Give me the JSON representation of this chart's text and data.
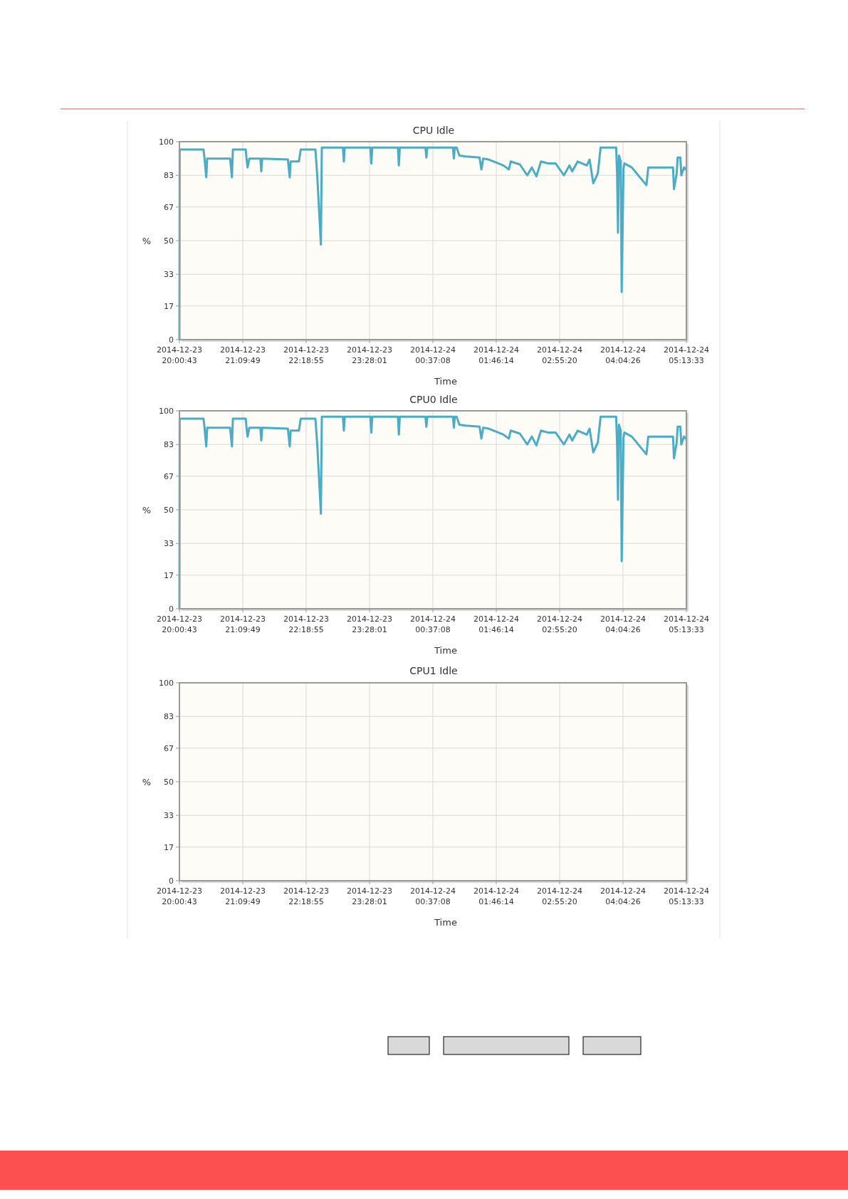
{
  "chart_data": [
    {
      "type": "line",
      "title": "CPU Idle",
      "xlabel": "Time",
      "ylabel": "%",
      "grid": true,
      "xlim": [
        "2014-12-23T20:00:43",
        "2014-12-24T05:13:33"
      ],
      "ylim": [
        0,
        100
      ],
      "yticks": [
        0,
        17,
        33,
        50,
        67,
        83,
        100
      ],
      "xticks": [
        {
          "value": "2014-12-23T20:00:43",
          "label": "2014-12-23 20:00:43"
        },
        {
          "value": "2014-12-23T21:09:49",
          "label": "2014-12-23 21:09:49"
        },
        {
          "value": "2014-12-23T22:18:55",
          "label": "2014-12-23 22:18:55"
        },
        {
          "value": "2014-12-23T23:28:01",
          "label": "2014-12-23 23:28:01"
        },
        {
          "value": "2014-12-24T00:37:08",
          "label": "2014-12-24 00:37:08"
        },
        {
          "value": "2014-12-24T01:46:14",
          "label": "2014-12-24 01:46:14"
        },
        {
          "value": "2014-12-24T02:55:20",
          "label": "2014-12-24 02:55:20"
        },
        {
          "value": "2014-12-24T04:04:26",
          "label": "2014-12-24 04:04:26"
        },
        {
          "value": "2014-12-24T05:13:33",
          "label": "2014-12-24 05:13:33"
        }
      ],
      "x": [
        "2014-12-23T20:00:43",
        "2014-12-23T20:01",
        "2014-12-23T20:27",
        "2014-12-23T20:28",
        "2014-12-23T20:30",
        "2014-12-23T20:31",
        "2014-12-23T20:56",
        "2014-12-23T20:58",
        "2014-12-23T20:59",
        "2014-12-23T21:13",
        "2014-12-23T21:14",
        "2014-12-23T21:15",
        "2014-12-23T21:17",
        "2014-12-23T21:29",
        "2014-12-23T21:30",
        "2014-12-23T21:31",
        "2014-12-23T21:59",
        "2014-12-23T22:01",
        "2014-12-23T22:02",
        "2014-12-23T22:11",
        "2014-12-23T22:13",
        "2014-12-23T22:29",
        "2014-12-23T22:31",
        "2014-12-23T22:35",
        "2014-12-23T22:36",
        "2014-12-23T22:59",
        "2014-12-23T23:00",
        "2014-12-23T23:01",
        "2014-12-23T23:29",
        "2014-12-23T23:30",
        "2014-12-23T23:31",
        "2014-12-23T23:59",
        "2014-12-24T00:00",
        "2014-12-24T00:01",
        "2014-12-24T00:29",
        "2014-12-24T00:30",
        "2014-12-24T00:31",
        "2014-12-24T00:59",
        "2014-12-24T01:00",
        "2014-12-24T01:01",
        "2014-12-24T01:03",
        "2014-12-24T01:06",
        "2014-12-24T01:13",
        "2014-12-24T01:28",
        "2014-12-24T01:30",
        "2014-12-24T01:32",
        "2014-12-24T01:38",
        "2014-12-24T01:46",
        "2014-12-24T01:54",
        "2014-12-24T02:00",
        "2014-12-24T02:02",
        "2014-12-24T02:12",
        "2014-12-24T02:20",
        "2014-12-24T02:25",
        "2014-12-24T02:30",
        "2014-12-24T02:35",
        "2014-12-24T02:43",
        "2014-12-24T02:51",
        "2014-12-24T03:00",
        "2014-12-24T03:06",
        "2014-12-24T03:09",
        "2014-12-24T03:15",
        "2014-12-24T03:25",
        "2014-12-24T03:28",
        "2014-12-24T03:32",
        "2014-12-24T03:37",
        "2014-12-24T03:40",
        "2014-12-24T03:57",
        "2014-12-24T03:58",
        "2014-12-24T03:59",
        "2014-12-24T04:00",
        "2014-12-24T04:02",
        "2014-12-24T04:03",
        "2014-12-24T04:05",
        "2014-12-24T04:06",
        "2014-12-24T04:14",
        "2014-12-24T04:30",
        "2014-12-24T04:32",
        "2014-12-24T04:59",
        "2014-12-24T05:00",
        "2014-12-24T05:03",
        "2014-12-24T05:04",
        "2014-12-24T05:07",
        "2014-12-24T05:08",
        "2014-12-24T05:11",
        "2014-12-24T05:13"
      ],
      "series": [
        {
          "color": "#4aacc5",
          "values": [
            0,
            96,
            96,
            92,
            82,
            91.5,
            91.5,
            82,
            96,
            96,
            91,
            87,
            91.5,
            91.5,
            85,
            91.5,
            91,
            82,
            90,
            90,
            96,
            96,
            83,
            48,
            97,
            97,
            90,
            97,
            97,
            89,
            97,
            97,
            88,
            97,
            97,
            92,
            97,
            97,
            91.5,
            97,
            97,
            93,
            92.5,
            92,
            86,
            91.5,
            91,
            89.5,
            88,
            86,
            90,
            88.5,
            83,
            87,
            82.5,
            90,
            89,
            89,
            83,
            88,
            85,
            90,
            88,
            91,
            79,
            84,
            97,
            97,
            83,
            54,
            93,
            90,
            24,
            86.5,
            89,
            87,
            78,
            87,
            87,
            76,
            84,
            92,
            92,
            83,
            87,
            86
          ]
        }
      ]
    },
    {
      "type": "line",
      "title": "CPU0 Idle",
      "xlabel": "Time",
      "ylabel": "%",
      "grid": true,
      "xlim": [
        "2014-12-23T20:00:43",
        "2014-12-24T05:13:33"
      ],
      "ylim": [
        0,
        100
      ],
      "yticks": [
        0,
        17,
        33,
        50,
        67,
        83,
        100
      ],
      "xticks": [
        {
          "value": "2014-12-23T20:00:43",
          "label": "2014-12-23 20:00:43"
        },
        {
          "value": "2014-12-23T21:09:49",
          "label": "2014-12-23 21:09:49"
        },
        {
          "value": "2014-12-23T22:18:55",
          "label": "2014-12-23 22:18:55"
        },
        {
          "value": "2014-12-23T23:28:01",
          "label": "2014-12-23 23:28:01"
        },
        {
          "value": "2014-12-24T00:37:08",
          "label": "2014-12-24 00:37:08"
        },
        {
          "value": "2014-12-24T01:46:14",
          "label": "2014-12-24 01:46:14"
        },
        {
          "value": "2014-12-24T02:55:20",
          "label": "2014-12-24 02:55:20"
        },
        {
          "value": "2014-12-24T04:04:26",
          "label": "2014-12-24 04:04:26"
        },
        {
          "value": "2014-12-24T05:13:33",
          "label": "2014-12-24 05:13:33"
        }
      ],
      "x": [
        "2014-12-23T20:00:43",
        "2014-12-23T20:01",
        "2014-12-23T20:27",
        "2014-12-23T20:28",
        "2014-12-23T20:30",
        "2014-12-23T20:31",
        "2014-12-23T20:56",
        "2014-12-23T20:58",
        "2014-12-23T20:59",
        "2014-12-23T21:13",
        "2014-12-23T21:14",
        "2014-12-23T21:15",
        "2014-12-23T21:17",
        "2014-12-23T21:29",
        "2014-12-23T21:30",
        "2014-12-23T21:31",
        "2014-12-23T21:59",
        "2014-12-23T22:01",
        "2014-12-23T22:02",
        "2014-12-23T22:11",
        "2014-12-23T22:13",
        "2014-12-23T22:29",
        "2014-12-23T22:31",
        "2014-12-23T22:35",
        "2014-12-23T22:36",
        "2014-12-23T22:59",
        "2014-12-23T23:00",
        "2014-12-23T23:01",
        "2014-12-23T23:29",
        "2014-12-23T23:30",
        "2014-12-23T23:31",
        "2014-12-23T23:59",
        "2014-12-24T00:00",
        "2014-12-24T00:01",
        "2014-12-24T00:29",
        "2014-12-24T00:30",
        "2014-12-24T00:31",
        "2014-12-24T00:59",
        "2014-12-24T01:00",
        "2014-12-24T01:01",
        "2014-12-24T01:03",
        "2014-12-24T01:06",
        "2014-12-24T01:13",
        "2014-12-24T01:28",
        "2014-12-24T01:30",
        "2014-12-24T01:32",
        "2014-12-24T01:38",
        "2014-12-24T01:46",
        "2014-12-24T01:54",
        "2014-12-24T02:00",
        "2014-12-24T02:02",
        "2014-12-24T02:12",
        "2014-12-24T02:20",
        "2014-12-24T02:25",
        "2014-12-24T02:30",
        "2014-12-24T02:35",
        "2014-12-24T02:43",
        "2014-12-24T02:51",
        "2014-12-24T03:00",
        "2014-12-24T03:06",
        "2014-12-24T03:09",
        "2014-12-24T03:15",
        "2014-12-24T03:25",
        "2014-12-24T03:28",
        "2014-12-24T03:32",
        "2014-12-24T03:37",
        "2014-12-24T03:40",
        "2014-12-24T03:57",
        "2014-12-24T03:58",
        "2014-12-24T03:59",
        "2014-12-24T04:00",
        "2014-12-24T04:02",
        "2014-12-24T04:03",
        "2014-12-24T04:05",
        "2014-12-24T04:06",
        "2014-12-24T04:14",
        "2014-12-24T04:30",
        "2014-12-24T04:32",
        "2014-12-24T04:59",
        "2014-12-24T05:00",
        "2014-12-24T05:03",
        "2014-12-24T05:04",
        "2014-12-24T05:07",
        "2014-12-24T05:08",
        "2014-12-24T05:11",
        "2014-12-24T05:13"
      ],
      "series": [
        {
          "color": "#4aacc5",
          "values": [
            0,
            96,
            96,
            92,
            82,
            91.5,
            91.5,
            82,
            96,
            96,
            91,
            87,
            91.5,
            91.5,
            85,
            91.5,
            91,
            82,
            90,
            90,
            96,
            96,
            83,
            48,
            97,
            97,
            90,
            97,
            97,
            89,
            97,
            97,
            88,
            97,
            97,
            92,
            97,
            97,
            91.5,
            97,
            97,
            93,
            92.5,
            92,
            86,
            91.5,
            91,
            89.5,
            88,
            86,
            90,
            88.5,
            83,
            87,
            82.5,
            90,
            89,
            89,
            83,
            88,
            85,
            90,
            88,
            91,
            79,
            84,
            97,
            97,
            83,
            55,
            93,
            90,
            24,
            86.5,
            89,
            87,
            78,
            87,
            87,
            76,
            84,
            92,
            92,
            83,
            87,
            86
          ]
        }
      ]
    },
    {
      "type": "line",
      "title": "CPU1 Idle",
      "xlabel": "Time",
      "ylabel": "%",
      "grid": true,
      "xlim": [
        "2014-12-23T20:00:43",
        "2014-12-24T05:13:33"
      ],
      "ylim": [
        0,
        100
      ],
      "yticks": [
        0,
        17,
        33,
        50,
        67,
        83,
        100
      ],
      "xticks": [
        {
          "value": "2014-12-23T20:00:43",
          "label": "2014-12-23 20:00:43"
        },
        {
          "value": "2014-12-23T21:09:49",
          "label": "2014-12-23 21:09:49"
        },
        {
          "value": "2014-12-23T22:18:55",
          "label": "2014-12-23 22:18:55"
        },
        {
          "value": "2014-12-23T23:28:01",
          "label": "2014-12-23 23:28:01"
        },
        {
          "value": "2014-12-24T00:37:08",
          "label": "2014-12-24 00:37:08"
        },
        {
          "value": "2014-12-24T01:46:14",
          "label": "2014-12-24 01:46:14"
        },
        {
          "value": "2014-12-24T02:55:20",
          "label": "2014-12-24 02:55:20"
        },
        {
          "value": "2014-12-24T04:04:26",
          "label": "2014-12-24 04:04:26"
        },
        {
          "value": "2014-12-24T05:13:33",
          "label": "2014-12-24 05:13:33"
        }
      ]
    }
  ]
}
